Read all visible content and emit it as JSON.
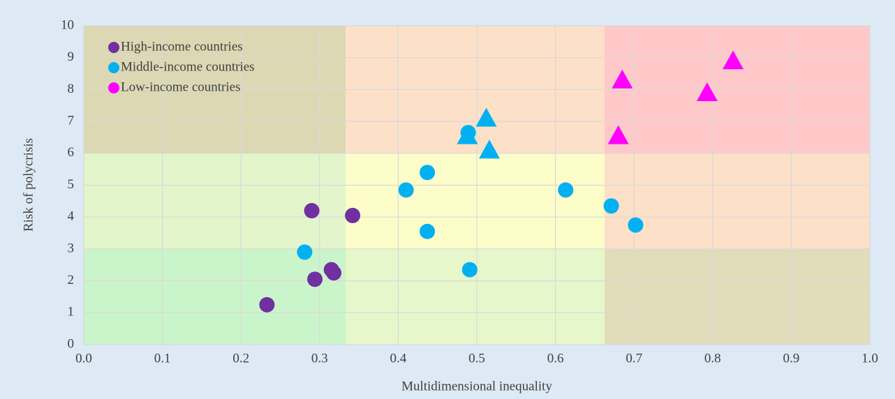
{
  "chart_data": {
    "type": "scatter",
    "xlabel": "Multidimensional inequality",
    "ylabel": "Risk of polycrisis",
    "xlim": [
      0,
      1
    ],
    "ylim": [
      0,
      10
    ],
    "xticks": [
      {
        "value": 0,
        "label": "0.0"
      },
      0.1,
      0.2,
      0.3,
      0.4,
      0.5,
      0.6,
      0.7,
      0.8,
      0.9,
      {
        "value": 1,
        "label": "1.0"
      }
    ],
    "yticks": [
      0,
      1,
      2,
      3,
      4,
      5,
      6,
      7,
      8,
      9,
      10
    ],
    "grid": true,
    "legend": "upper left",
    "series": [
      {
        "name": "High-income countries",
        "color": "#7030a0",
        "x": [
          0.233,
          0.29,
          0.294,
          0.315,
          0.318,
          0.342
        ],
        "values": [
          1.25,
          4.2,
          2.05,
          2.35,
          2.25,
          4.05
        ],
        "marker": [
          "circle",
          "circle",
          "circle",
          "circle",
          "circle",
          "circle"
        ]
      },
      {
        "name": "Middle-income countries",
        "color": "#00b0f0",
        "x": [
          0.281,
          0.41,
          0.437,
          0.437,
          0.489,
          0.491,
          0.613,
          0.671,
          0.702,
          0.488,
          0.512,
          0.516
        ],
        "values": [
          2.9,
          4.85,
          5.4,
          3.55,
          6.65,
          2.35,
          4.85,
          4.35,
          3.75,
          6.55,
          7.1,
          6.1
        ],
        "marker": [
          "circle",
          "circle",
          "circle",
          "circle",
          "circle",
          "circle",
          "circle",
          "circle",
          "circle",
          "triangle",
          "triangle",
          "triangle"
        ]
      },
      {
        "name": "Low-income countries",
        "color": "#ff00ff",
        "x": [
          0.68,
          0.685,
          0.793,
          0.826
        ],
        "values": [
          6.55,
          8.3,
          7.9,
          8.9
        ],
        "marker": [
          "triangle",
          "triangle",
          "triangle",
          "triangle"
        ]
      }
    ]
  }
}
